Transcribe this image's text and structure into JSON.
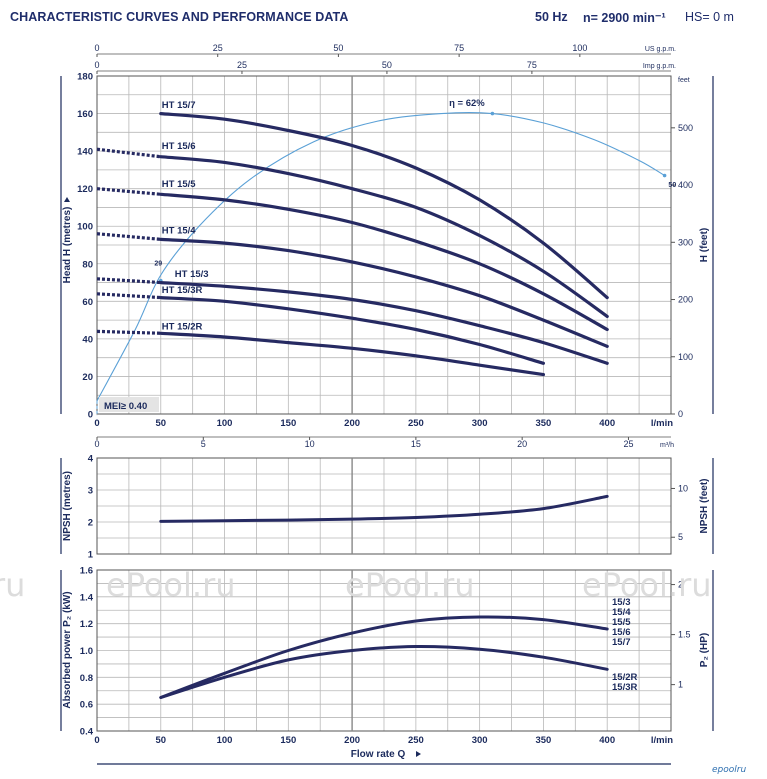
{
  "header": {
    "title": "CHARACTERISTIC CURVES AND PERFORMANCE DATA",
    "frequency": "50 Hz",
    "speed": "n= 2900 min⁻¹",
    "hs": "HS= 0 m"
  },
  "watermark": {
    "texts": [
      "ru",
      "ePool.ru",
      "ePool.ru",
      "ePool.ru"
    ],
    "logo": "epoolru"
  },
  "colors": {
    "curve": "#262a62",
    "efficiency": "#5aa0d6",
    "grid": "#b8b8b8",
    "text": "#1b2a5c"
  },
  "chart_data": [
    {
      "type": "line",
      "name": "head",
      "x_unit": "l/min",
      "ylabel": "Head  H  (metres)",
      "y2label": "H  (feet)",
      "xlim": [
        0,
        450
      ],
      "ylim": [
        0,
        180
      ],
      "x_ticks": [
        "0",
        "50",
        "100",
        "150",
        "200",
        "250",
        "300",
        "350",
        "400"
      ],
      "y_ticks": [
        "0",
        "20",
        "40",
        "60",
        "80",
        "100",
        "120",
        "140",
        "160",
        "180"
      ],
      "y2_unit": "feet",
      "y2_ticks": [
        "0",
        "100",
        "200",
        "300",
        "400",
        "500"
      ],
      "top_axis_1": {
        "unit": "US g.p.m.",
        "ticks": [
          "0",
          "25",
          "50",
          "75",
          "100"
        ]
      },
      "top_axis_2": {
        "unit": "Imp g.p.m.",
        "ticks": [
          "0",
          "25",
          "50",
          "75"
        ]
      },
      "bottom_axis_2": {
        "unit": "m³/h",
        "ticks": [
          "0",
          "5",
          "10",
          "15",
          "20",
          "25"
        ]
      },
      "series": [
        {
          "name": "HT 15/7",
          "dashed_x": [],
          "dashed_y": [],
          "x": [
            50,
            100,
            150,
            200,
            250,
            300,
            350,
            400
          ],
          "y": [
            160,
            157,
            151,
            143,
            131,
            114,
            91,
            62
          ]
        },
        {
          "name": "HT 15/6",
          "dashed_x": [
            0,
            50
          ],
          "dashed_y": [
            141,
            137
          ],
          "x": [
            50,
            100,
            150,
            200,
            250,
            300,
            350,
            400
          ],
          "y": [
            137,
            134,
            128,
            120,
            110,
            95,
            76,
            52
          ]
        },
        {
          "name": "HT 15/5",
          "dashed_x": [
            0,
            50
          ],
          "dashed_y": [
            120,
            117
          ],
          "x": [
            50,
            100,
            150,
            200,
            250,
            300,
            350,
            400
          ],
          "y": [
            117,
            114,
            109,
            102,
            92,
            80,
            64,
            45
          ]
        },
        {
          "name": "HT 15/4",
          "dashed_x": [
            0,
            50
          ],
          "dashed_y": [
            96,
            93
          ],
          "x": [
            50,
            100,
            150,
            200,
            250,
            300,
            350,
            400
          ],
          "y": [
            93,
            91,
            87,
            81,
            73,
            63,
            50,
            36
          ]
        },
        {
          "name": "HT 15/3",
          "dashed_x": [
            0,
            50
          ],
          "dashed_y": [
            72,
            70
          ],
          "x": [
            50,
            100,
            150,
            200,
            250,
            300,
            350,
            400
          ],
          "y": [
            70,
            68,
            65,
            61,
            55,
            47,
            38,
            27
          ]
        },
        {
          "name": "HT 15/3R",
          "dashed_x": [
            0,
            50
          ],
          "dashed_y": [
            64,
            62
          ],
          "x": [
            50,
            100,
            150,
            200,
            250,
            300,
            350
          ],
          "y": [
            62,
            60,
            56,
            51,
            45,
            37,
            27
          ]
        },
        {
          "name": "HT 15/2R",
          "dashed_x": [
            0,
            50
          ],
          "dashed_y": [
            44,
            43
          ],
          "x": [
            50,
            100,
            150,
            200,
            250,
            300,
            350
          ],
          "y": [
            43,
            41,
            38,
            35,
            31,
            26,
            21
          ]
        }
      ],
      "efficiency_curve": {
        "x": [
          0,
          30,
          50,
          80,
          120,
          170,
          220,
          270,
          310,
          350,
          390,
          425,
          445
        ],
        "y": [
          7,
          45,
          74,
          100,
          125,
          145,
          156,
          160,
          160,
          155,
          146,
          135,
          127
        ],
        "label_peak": "η = 62%",
        "label_29": "29",
        "label_50": "50"
      },
      "mei_label": "MEI≥ 0.40"
    },
    {
      "type": "line",
      "name": "npsh",
      "ylabel": "NPSH (metres)",
      "y2label": "NPSH (feet)",
      "ylim": [
        1,
        4
      ],
      "y_ticks": [
        "1",
        "2",
        "3",
        "4"
      ],
      "y2_ticks": [
        "5",
        "10"
      ],
      "series": [
        {
          "name": "NPSH",
          "x": [
            50,
            100,
            150,
            200,
            250,
            300,
            350,
            400
          ],
          "y": [
            2.02,
            2.04,
            2.06,
            2.09,
            2.14,
            2.24,
            2.42,
            2.8
          ]
        }
      ]
    },
    {
      "type": "line",
      "name": "power",
      "ylabel": "Absorbed power P₂ (kW)",
      "y2label": "P₂ (HP)",
      "xlabel": "Flow rate  Q",
      "x_unit": "l/min",
      "ylim": [
        0.4,
        1.6
      ],
      "y_ticks": [
        "0.4",
        "0.6",
        "0.8",
        "1.0",
        "1.2",
        "1.4",
        "1.6"
      ],
      "y2_ticks": [
        "1",
        "1.5",
        "2"
      ],
      "series": [
        {
          "name": "15/3 15/4 15/5 15/6 15/7",
          "labels": [
            "15/3",
            "15/4",
            "15/5",
            "15/6",
            "15/7"
          ],
          "x": [
            50,
            100,
            150,
            200,
            250,
            300,
            350,
            400
          ],
          "y": [
            0.65,
            0.83,
            1.0,
            1.13,
            1.22,
            1.25,
            1.23,
            1.16
          ]
        },
        {
          "name": "15/2R 15/3R",
          "labels": [
            "15/2R",
            "15/3R"
          ],
          "x": [
            50,
            100,
            150,
            200,
            250,
            300,
            350,
            400
          ],
          "y": [
            0.65,
            0.8,
            0.93,
            1.0,
            1.03,
            1.01,
            0.95,
            0.86
          ]
        }
      ]
    }
  ]
}
